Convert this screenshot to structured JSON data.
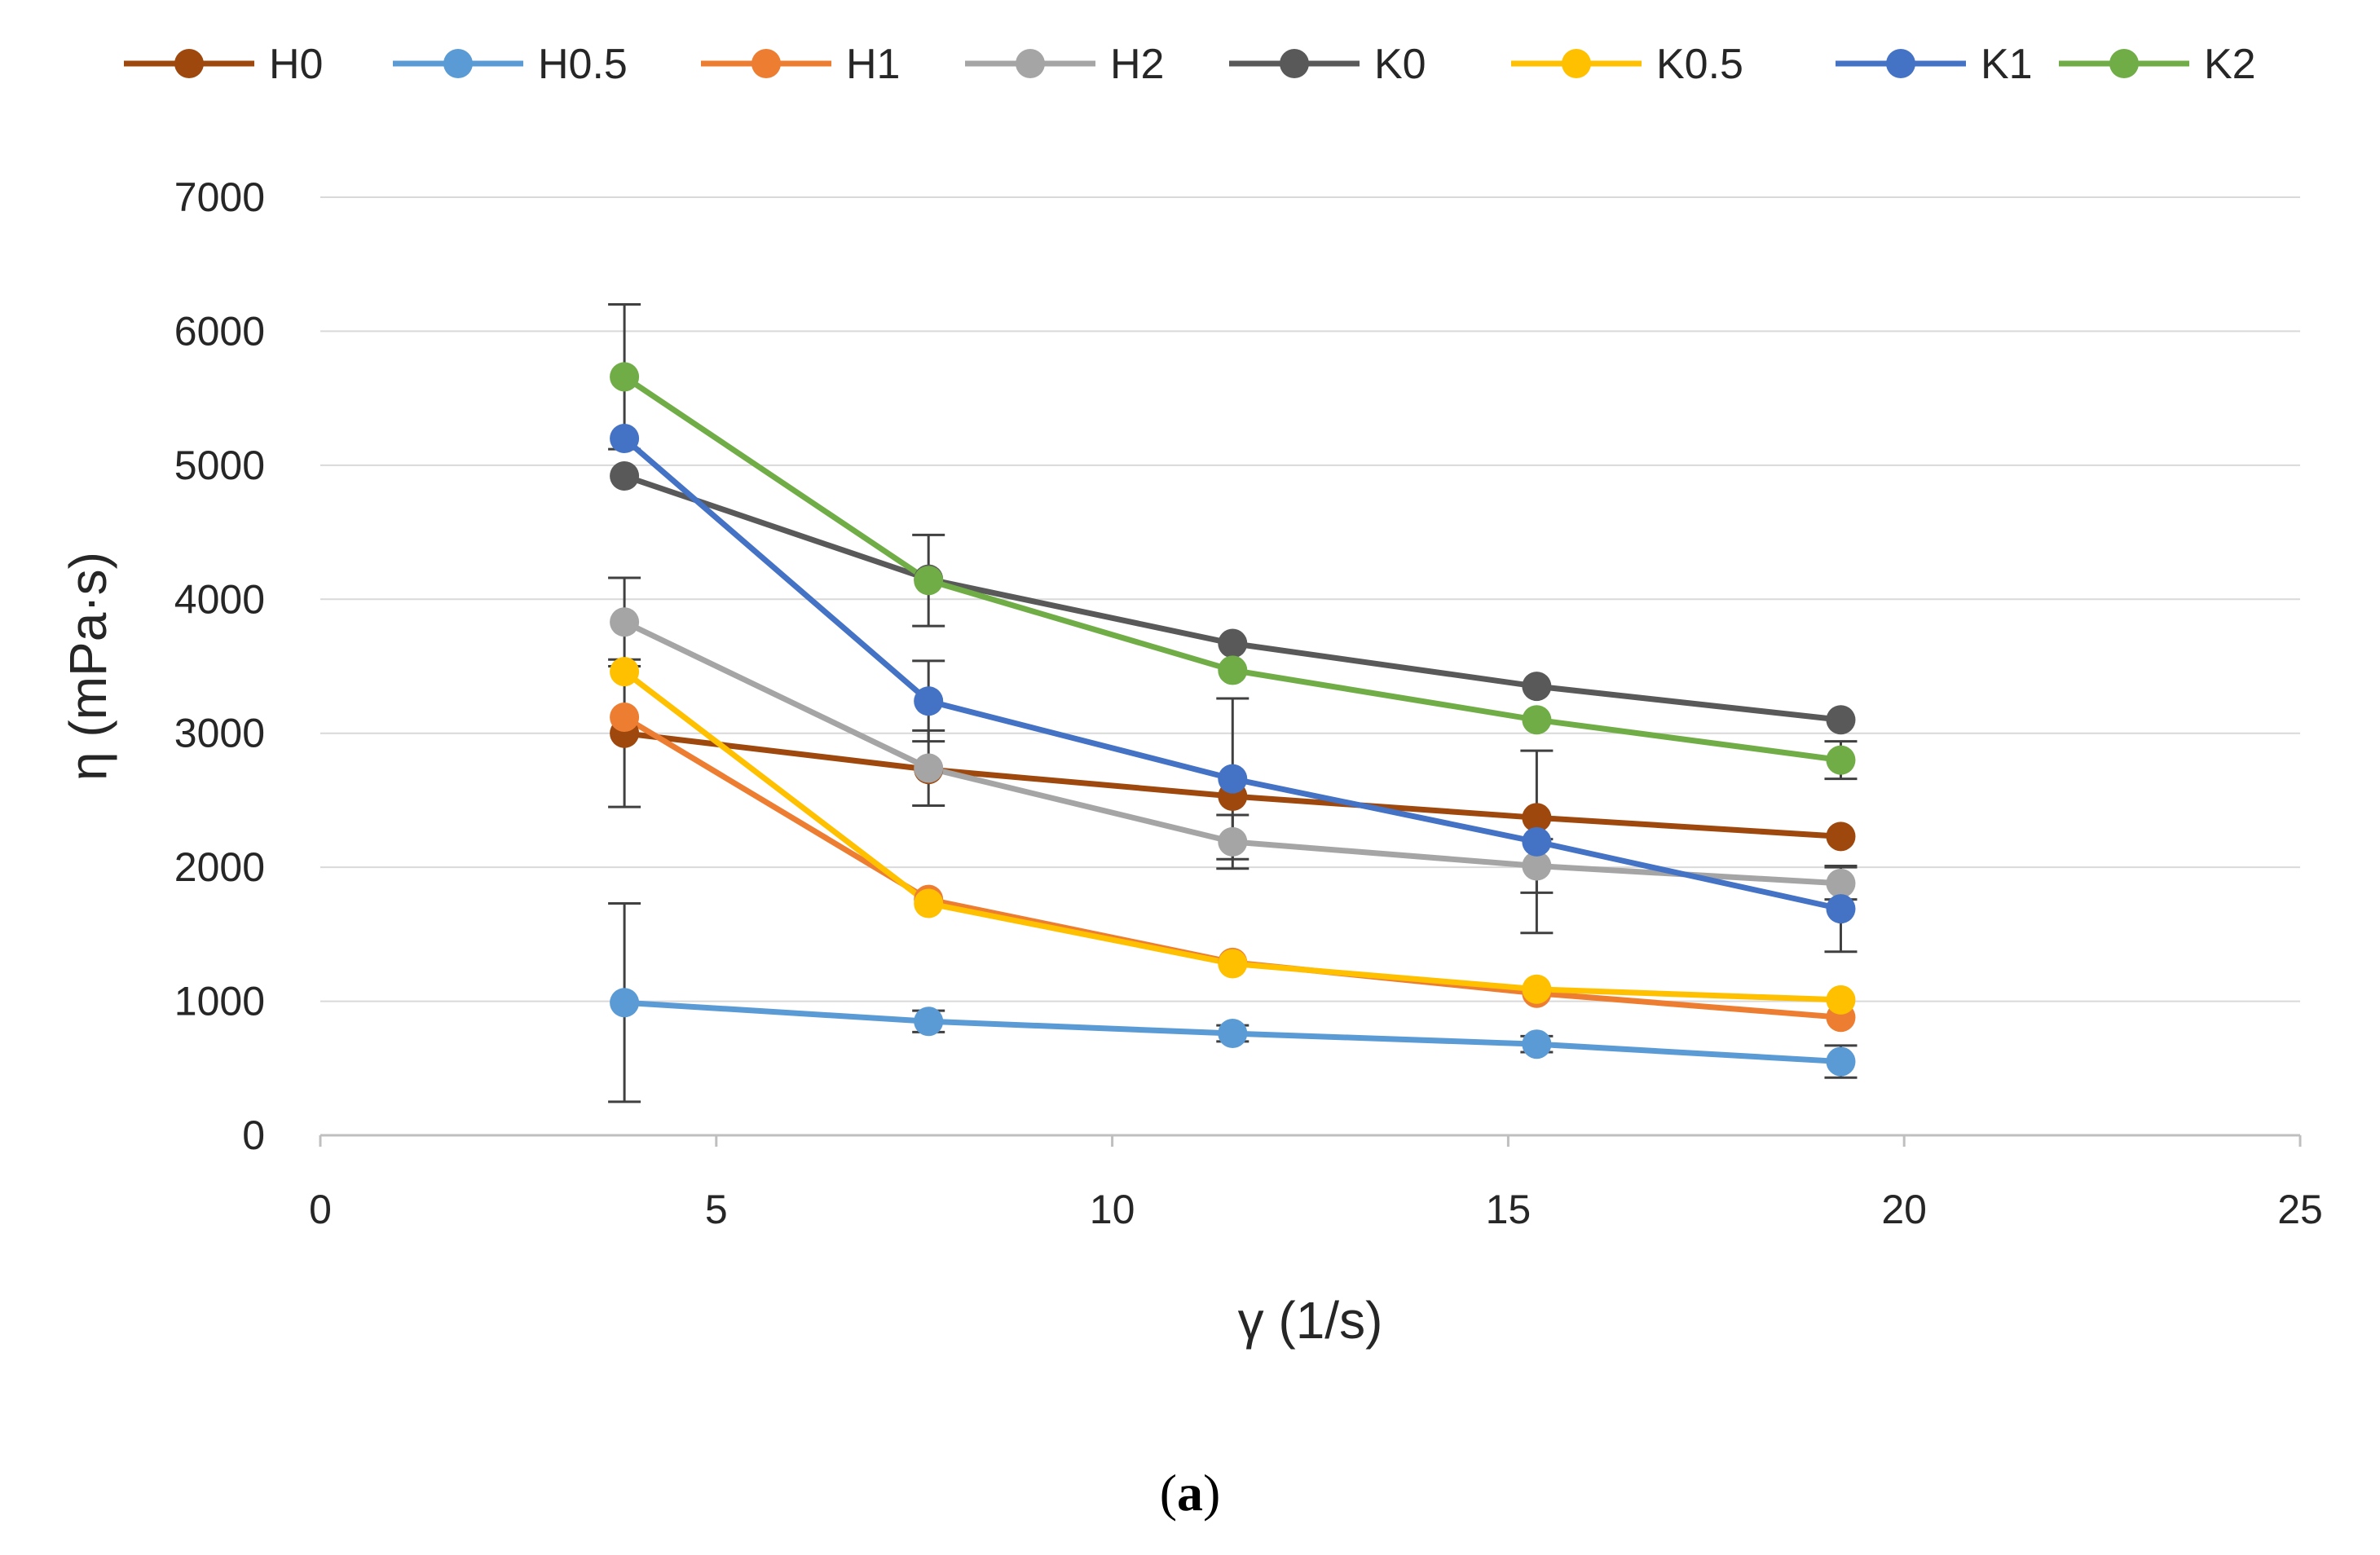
{
  "chart_data": {
    "type": "line",
    "title": "",
    "xlabel": "γ (1/s)",
    "ylabel": "η (mPa·s)",
    "xlim": [
      0,
      25
    ],
    "ylim": [
      0,
      7000
    ],
    "xticks": [
      0,
      5,
      10,
      15,
      20,
      25
    ],
    "yticks": [
      0,
      1000,
      2000,
      3000,
      4000,
      5000,
      6000,
      7000
    ],
    "grid": "horizontal",
    "legend_position": "top",
    "x": [
      3.84,
      7.68,
      11.52,
      15.36,
      19.2
    ],
    "series": [
      {
        "name": "H0",
        "color": "#9E480E",
        "values": [
          3000,
          2730,
          2530,
          2370,
          2230
        ],
        "errors": [
          550,
          0,
          0,
          0,
          0
        ]
      },
      {
        "name": "H0.5",
        "color": "#5B9BD5",
        "values": [
          990,
          850,
          760,
          680,
          550
        ],
        "errors": [
          740,
          80,
          60,
          60,
          120
        ]
      },
      {
        "name": "H1",
        "color": "#ED7D31",
        "values": [
          3120,
          1760,
          1290,
          1060,
          880
        ],
        "errors": [
          0,
          0,
          0,
          0,
          0
        ]
      },
      {
        "name": "H2",
        "color": "#A5A5A5",
        "values": [
          3830,
          2740,
          2190,
          2010,
          1880
        ],
        "errors": [
          330,
          280,
          200,
          200,
          120
        ]
      },
      {
        "name": "K0",
        "color": "#595959",
        "values": [
          4920,
          4150,
          3670,
          3350,
          3100
        ],
        "errors": [
          0,
          0,
          0,
          0,
          0
        ]
      },
      {
        "name": "K0.5",
        "color": "#FFC000",
        "values": [
          3460,
          1730,
          1280,
          1090,
          1010
        ],
        "errors": [
          0,
          0,
          0,
          0,
          0
        ]
      },
      {
        "name": "K1",
        "color": "#4472C4",
        "values": [
          5200,
          3240,
          2660,
          2190,
          1690
        ],
        "errors": [
          0,
          300,
          600,
          680,
          320
        ]
      },
      {
        "name": "K2",
        "color": "#70AD47",
        "values": [
          5660,
          4140,
          3470,
          3100,
          2800
        ],
        "errors": [
          540,
          340,
          0,
          0,
          140
        ]
      }
    ]
  },
  "caption": {
    "open": "(",
    "label": "a",
    "close": ")"
  }
}
